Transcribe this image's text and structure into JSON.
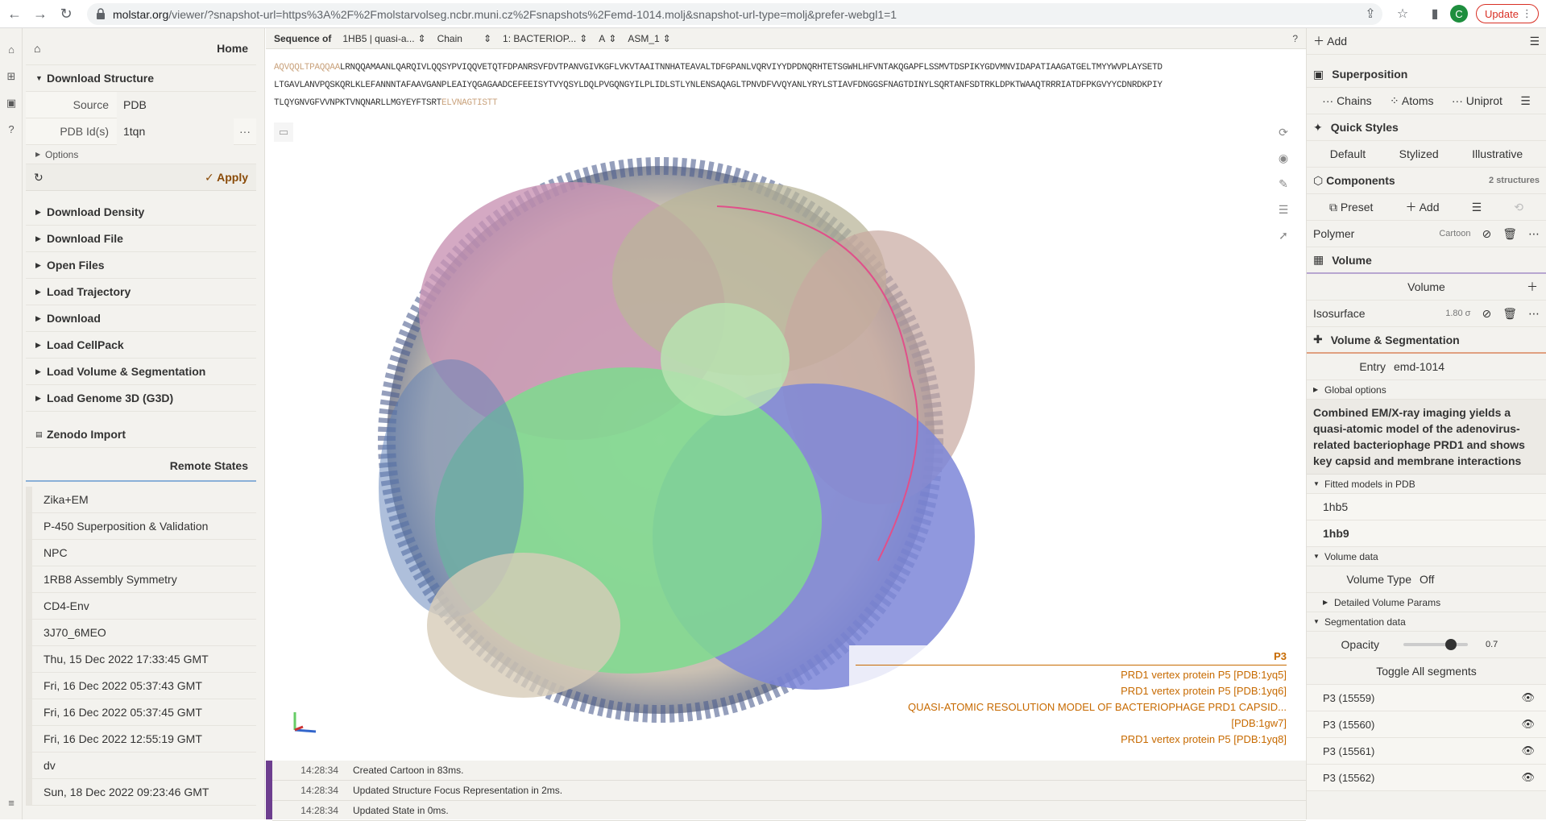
{
  "browser": {
    "url_host": "molstar.org",
    "url_rest": "/viewer/?snapshot-url=https%3A%2F%2Fmolstarvolseg.ncbr.muni.cz%2Fsnapshots%2Femd-1014.molj&snapshot-url-type=molj&prefer-webgl1=1",
    "avatar_letter": "C",
    "update_label": "Update"
  },
  "left": {
    "home": "Home",
    "download_structure": "Download Structure",
    "source_label": "Source",
    "source_value": "PDB",
    "pdb_label": "PDB Id(s)",
    "pdb_value": "1tqn",
    "pdb_more": "···",
    "options": "Options",
    "apply": "Apply",
    "sections": [
      "Download Density",
      "Download File",
      "Open Files",
      "Load Trajectory",
      "Download",
      "Load CellPack",
      "Load Volume & Segmentation",
      "Load Genome 3D (G3D)"
    ],
    "zenodo": "Zenodo Import",
    "remote_header": "Remote States",
    "remote_items": [
      "Zika+EM",
      "P-450 Superposition & Validation",
      "NPC",
      "1RB8 Assembly Symmetry",
      "CD4-Env",
      "3J70_6MEO",
      "Thu, 15 Dec 2022 17:33:45 GMT",
      "Fri, 16 Dec 2022 05:37:43 GMT",
      "Fri, 16 Dec 2022 05:37:45 GMT",
      "Fri, 16 Dec 2022 12:55:19 GMT",
      "dv",
      "Sun, 18 Dec 2022 09:23:46 GMT"
    ]
  },
  "seq": {
    "label": "Sequence of",
    "entity": "1HB5 | quasi-a...",
    "chain_label": "Chain",
    "chain": "1: BACTERIOP...",
    "chain_id": "A",
    "assembly": "ASM_1",
    "line1_grey": "AQVQQLTPAQQAA",
    "line1": "LRNQQAMAANLQARQIVLQQSYPVIQQVETQTFDPANRSVFDVTPANVGIVKGFLVKVTAAITNNHATEAVALTDFGPANLVQRVIYYDPDNQRHTETSGWHLHFVNTAKQGAPFLSSMVTDSPIKYGDVMNVIDAPATIAAGATGELTMYYWVPLAYSETD",
    "line2": "LTGAVLANVPQSKQRLKLEFANNNTAFAAVGANPLEAIYQGAGAADCEFEEISYTVYQSYLDQLPVGQNGYILPLIDLSTLYNLENSAQAGLTPNVDFVVQYANLYRYLSTIAVFDNGGSFNAGTDINYLSQRTANFSDTRKLDPKTWAAQTRRRIATDFPKGVYYCDNRDKPIY",
    "line3": "TLQYGNVGFVVNPKTVNQNARLLMGYEYFTSRT",
    "line3_grey": "ELVNAGTISTT"
  },
  "highlight": {
    "title": "P3",
    "lines": [
      "PRD1 vertex protein P5 [PDB:1yq5]",
      "PRD1 vertex protein P5 [PDB:1yq6]",
      "QUASI-ATOMIC RESOLUTION MODEL OF BACTERIOPHAGE PRD1 CAPSID... [PDB:1gw7]",
      "PRD1 vertex protein P5 [PDB:1yq8]"
    ]
  },
  "log": [
    {
      "time": "14:28:34",
      "msg": "Created Cartoon in 83ms."
    },
    {
      "time": "14:28:34",
      "msg": "Updated Structure Focus Representation in 2ms."
    },
    {
      "time": "14:28:34",
      "msg": "Updated State in 0ms."
    }
  ],
  "right": {
    "add": "Add",
    "superposition": "Superposition",
    "sup_tabs": [
      "Chains",
      "Atoms",
      "Uniprot"
    ],
    "quick_styles": "Quick Styles",
    "styles": [
      "Default",
      "Stylized",
      "Illustrative"
    ],
    "components": "Components",
    "components_count": "2 structures",
    "preset": "Preset",
    "add2": "Add",
    "polymer": "Polymer",
    "polymer_repr": "Cartoon",
    "volume": "Volume",
    "volume_sub": "Volume",
    "isosurface": "Isosurface",
    "iso_value": "1.80 σ",
    "volseg": "Volume & Segmentation",
    "entry_label": "Entry",
    "entry_value": "emd-1014",
    "global_options": "Global options",
    "description": "Combined EM/X-ray imaging yields a quasi-atomic model of the adenovirus-related bacteriophage PRD1 and shows key capsid and membrane interactions",
    "fitted": "Fitted models in PDB",
    "models": [
      "1hb5",
      "1hb9"
    ],
    "volume_data": "Volume data",
    "volume_type_label": "Volume Type",
    "volume_type": "Off",
    "detailed": "Detailed Volume Params",
    "segmentation_data": "Segmentation data",
    "opacity_label": "Opacity",
    "opacity_value": "0.7",
    "toggle_all": "Toggle All segments",
    "segments": [
      "P3 (15559)",
      "P3 (15560)",
      "P3 (15561)",
      "P3 (15562)"
    ]
  }
}
